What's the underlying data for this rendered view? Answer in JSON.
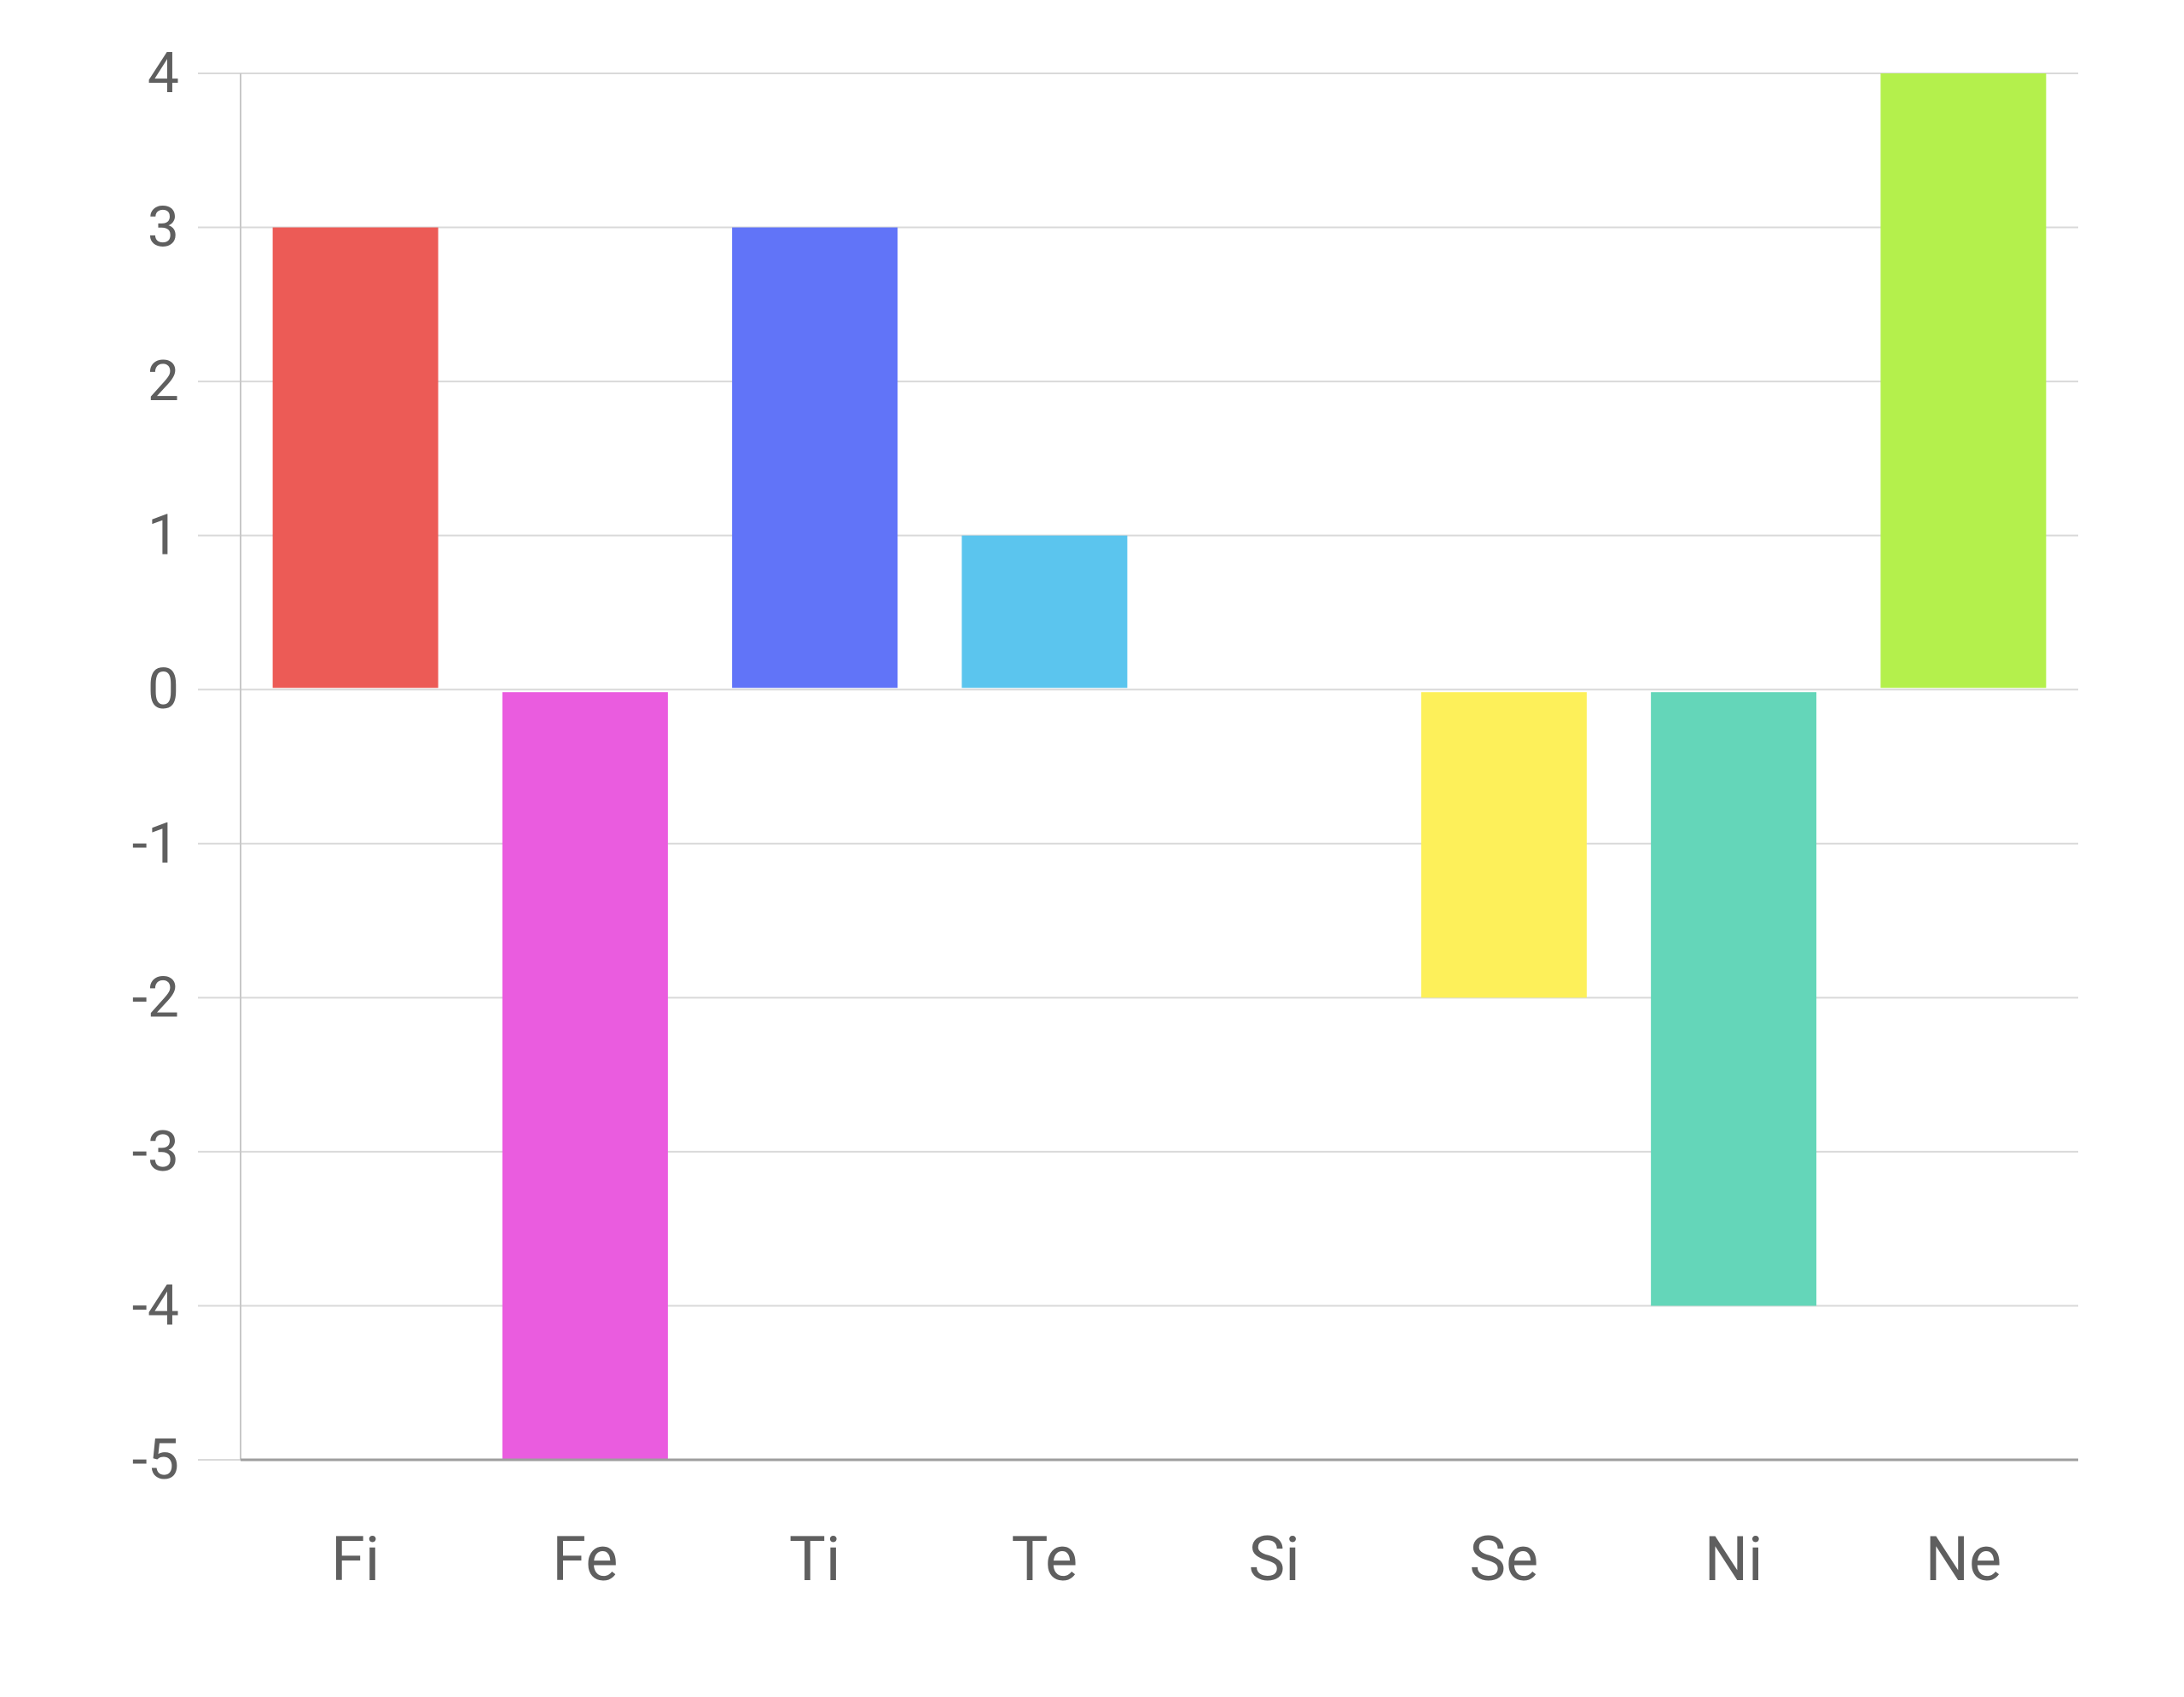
{
  "chart_data": {
    "type": "bar",
    "title": "",
    "xlabel": "",
    "ylabel": "",
    "categories": [
      "Fi",
      "Fe",
      "Ti",
      "Te",
      "Si",
      "Se",
      "Ni",
      "Ne"
    ],
    "values": [
      3,
      -5,
      3,
      1,
      0,
      -2,
      -4,
      4
    ],
    "colors": [
      "#ec5b56",
      "#ea5cdf",
      "#6174f8",
      "#5bc5ee",
      "#b0b0b0",
      "#fdf05a",
      "#64d6b9",
      "#b4f04c"
    ],
    "ylim": [
      -5,
      4
    ],
    "yticks": [
      "4",
      "3",
      "2",
      "1",
      "0",
      "-1",
      "-2",
      "-3",
      "-4",
      "-5"
    ],
    "grid": true,
    "legend": "none"
  }
}
